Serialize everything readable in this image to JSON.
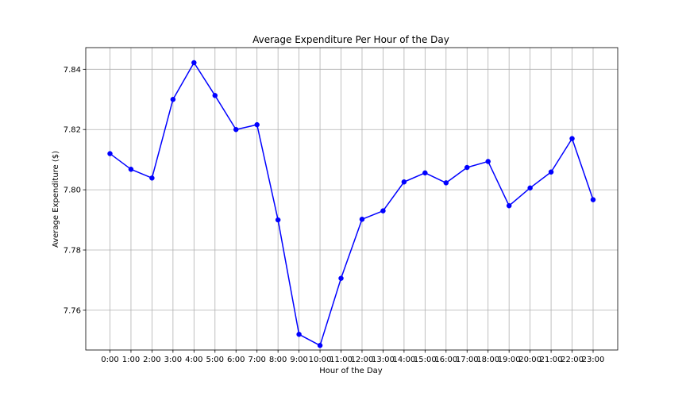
{
  "chart_data": {
    "type": "line",
    "title": "Average Expenditure Per Hour of the Day",
    "xlabel": "Hour of the Day",
    "ylabel": "Average Expenditure ($)",
    "categories": [
      "0:00",
      "1:00",
      "2:00",
      "3:00",
      "4:00",
      "5:00",
      "6:00",
      "7:00",
      "8:00",
      "9:00",
      "10:00",
      "11:00",
      "12:00",
      "13:00",
      "14:00",
      "15:00",
      "16:00",
      "17:00",
      "18:00",
      "19:00",
      "20:00",
      "21:00",
      "22:00",
      "23:00"
    ],
    "series": [
      {
        "values": [
          7.812,
          7.8068,
          7.8039,
          7.83,
          7.8422,
          7.8313,
          7.82,
          7.8216,
          7.79,
          7.752,
          7.7483,
          7.7706,
          7.7902,
          7.793,
          7.8026,
          7.8056,
          7.8023,
          7.8074,
          7.8094,
          7.7947,
          7.8006,
          7.8059,
          7.817,
          7.7967
        ],
        "color": "#0000ff"
      }
    ],
    "ylim": [
      7.7468,
      7.8472
    ],
    "yticks": [
      "7.76",
      "7.78",
      "7.80",
      "7.82",
      "7.84"
    ],
    "grid": true,
    "marker": "circle"
  }
}
